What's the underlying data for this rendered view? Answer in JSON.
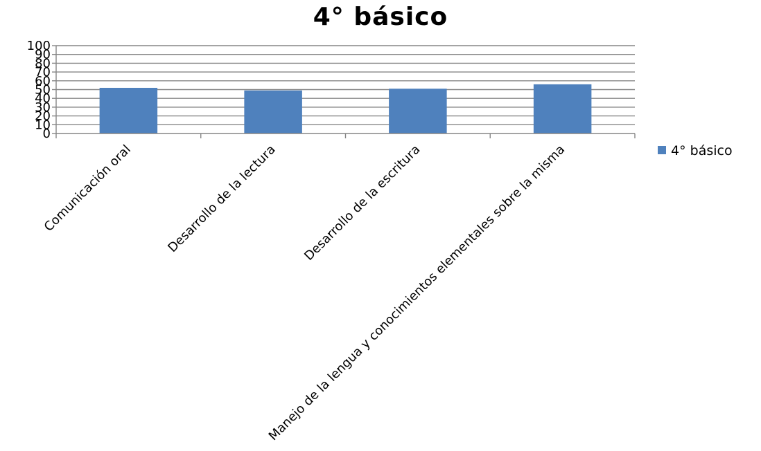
{
  "chart_data": {
    "type": "bar",
    "title": "4° básico",
    "categories": [
      "Comunicación oral",
      "Desarrollo de la lectura",
      "Desarrollo de la escritura",
      "Manejo de la lengua y conocimientos elementales sobre la misma"
    ],
    "series": [
      {
        "name": "4° básico",
        "values": [
          52,
          49,
          51,
          56
        ],
        "color": "#4f81bd"
      }
    ],
    "ylim": [
      0,
      100
    ],
    "yticks": [
      0,
      10,
      20,
      30,
      40,
      50,
      60,
      70,
      80,
      90,
      100
    ],
    "grid": true,
    "legend": "right"
  }
}
